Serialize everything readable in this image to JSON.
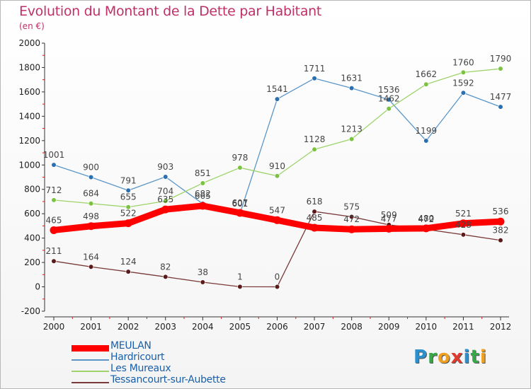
{
  "title": "Evolution du Montant de la Dette par Habitant",
  "unit": "(en €)",
  "logo": {
    "text": "Proxiti",
    "letters": [
      {
        "ch": "P",
        "color": "#2b8fd0"
      },
      {
        "ch": "r",
        "color": "#3aa64a"
      },
      {
        "ch": "o",
        "color": "#f0a020"
      },
      {
        "ch": "x",
        "color": "#e03b2e"
      },
      {
        "ch": "i",
        "color": "#2b8fd0"
      },
      {
        "ch": "t",
        "color": "#3aa64a"
      },
      {
        "ch": "i",
        "color": "#f0a020"
      }
    ]
  },
  "chart_data": {
    "type": "line",
    "title": "Evolution du Montant de la Dette par Habitant",
    "ylabel": "(en €)",
    "xlabel": "",
    "x": [
      "2000",
      "2001",
      "2002",
      "2003",
      "2004",
      "2005",
      "2006",
      "2007",
      "2008",
      "2009",
      "2010",
      "2011",
      "2012"
    ],
    "ylim": [
      -200,
      2000
    ],
    "yticks": [
      "-200",
      "0",
      "200",
      "400",
      "600",
      "800",
      "1000",
      "1200",
      "1400",
      "1600",
      "1800",
      "2000"
    ],
    "grid": false,
    "legend_position": "bottom-left",
    "series": [
      {
        "name": "MEULAN",
        "color": "#ff0000",
        "point_color": "#ff0000",
        "width": "thick",
        "values": [
          465,
          498,
          522,
          635,
          665,
          607,
          547,
          485,
          472,
          477,
          480,
          521,
          536
        ],
        "labels": [
          "465",
          "498",
          "522",
          "635",
          "665",
          "607",
          "547",
          "485",
          "472",
          "477",
          "480",
          "521",
          "536"
        ]
      },
      {
        "name": "Hardricourt",
        "color": "#5a96c8",
        "point_color": "#2a6fb0",
        "width": "thin",
        "values": [
          1001,
          900,
          791,
          903,
          682,
          601,
          1541,
          1711,
          1631,
          1536,
          1199,
          1592,
          1477
        ],
        "labels": [
          "1001",
          "900",
          "791",
          "903",
          "682",
          "601",
          "1541",
          "1711",
          "1631",
          "1536",
          "1199",
          "1592",
          "1477"
        ]
      },
      {
        "name": "Les Mureaux",
        "color": "#9dd36a",
        "point_color": "#7cc242",
        "width": "thin",
        "values": [
          712,
          684,
          655,
          704,
          851,
          978,
          910,
          1128,
          1213,
          1462,
          1662,
          1760,
          1790
        ],
        "labels": [
          "712",
          "684",
          "655",
          "704",
          "851",
          "978",
          "910",
          "1128",
          "1213",
          "1462",
          "1662",
          "1760",
          "1790"
        ]
      },
      {
        "name": "Tessancourt-sur-Aubette",
        "color": "#7a3a3a",
        "point_color": "#5a1a1a",
        "width": "thin",
        "values": [
          211,
          164,
          124,
          82,
          38,
          1,
          0,
          618,
          575,
          509,
          472,
          428,
          382
        ],
        "labels": [
          "211",
          "164",
          "124",
          "82",
          "38",
          "1",
          "0",
          "618",
          "575",
          "509",
          "472",
          "428",
          "382"
        ]
      }
    ]
  }
}
